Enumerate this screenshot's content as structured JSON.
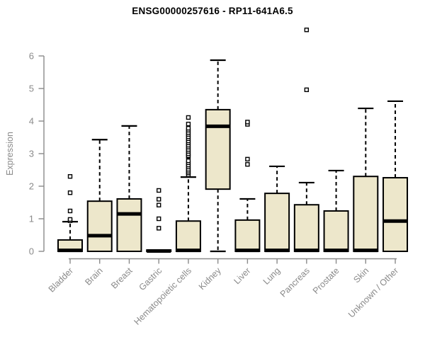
{
  "page": {
    "background": "#ffffff"
  },
  "chart_data": {
    "type": "box",
    "title": "ENSG00000257616 - RP11-641A6.5",
    "ylabel": "Expression",
    "xlabel": "",
    "ylim": [
      0,
      6
    ],
    "yticks": [
      0,
      1,
      2,
      3,
      4,
      5,
      6
    ],
    "grid": false,
    "legend": "none",
    "box_fill": "#ede7cb",
    "box_stroke": "#000000",
    "axis_color": "#8a8a8a",
    "categories": [
      "Bladder",
      "Brain",
      "Breast",
      "Gastric",
      "Hematopoietic cells",
      "Kidney",
      "Liver",
      "Lung",
      "Pancreas",
      "Prostate",
      "Skin",
      "Unknown / Other"
    ],
    "series": [
      {
        "label": "Bladder",
        "q1": 0,
        "median": 0.03,
        "q3": 0.35,
        "whisker_low": 0,
        "whisker_high": 0.91,
        "outliers": [
          0.94,
          0.98,
          1.24,
          1.8,
          2.3
        ]
      },
      {
        "label": "Brain",
        "q1": 0,
        "median": 0.48,
        "q3": 1.54,
        "whisker_low": 0,
        "whisker_high": 3.43,
        "outliers": []
      },
      {
        "label": "Breast",
        "q1": 0,
        "median": 1.15,
        "q3": 1.61,
        "whisker_low": 0,
        "whisker_high": 3.85,
        "outliers": []
      },
      {
        "label": "Gastric",
        "q1": 0,
        "median": 0.01,
        "q3": 0.04,
        "whisker_low": 0,
        "whisker_high": 0.04,
        "outliers": [
          0.71,
          1.0,
          1.42,
          1.6,
          1.87
        ]
      },
      {
        "label": "Hematopoietic cells",
        "q1": 0,
        "median": 0.03,
        "q3": 0.93,
        "whisker_low": 0,
        "whisker_high": 2.28,
        "outliers": [
          2.35,
          2.41,
          2.46,
          2.52,
          2.59,
          2.65,
          2.72,
          2.78,
          2.91,
          2.94,
          3.0,
          3.07,
          3.13,
          3.2,
          3.26,
          3.33,
          3.39,
          3.46,
          3.52,
          3.59,
          3.65,
          3.72,
          3.78,
          3.91,
          4.11
        ]
      },
      {
        "label": "Kidney",
        "q1": 1.91,
        "median": 3.84,
        "q3": 4.35,
        "whisker_low": 0,
        "whisker_high": 5.87,
        "outliers": []
      },
      {
        "label": "Liver",
        "q1": 0,
        "median": 0.03,
        "q3": 0.96,
        "whisker_low": 0,
        "whisker_high": 1.61,
        "outliers": [
          2.67,
          2.83,
          3.9,
          3.97
        ]
      },
      {
        "label": "Lung",
        "q1": 0,
        "median": 0.03,
        "q3": 1.78,
        "whisker_low": 0,
        "whisker_high": 2.61,
        "outliers": []
      },
      {
        "label": "Pancreas",
        "q1": 0,
        "median": 0.03,
        "q3": 1.43,
        "whisker_low": 0,
        "whisker_high": 2.11,
        "outliers": [
          4.96,
          6.8
        ]
      },
      {
        "label": "Prostate",
        "q1": 0,
        "median": 0.03,
        "q3": 1.24,
        "whisker_low": 0,
        "whisker_high": 2.48,
        "outliers": []
      },
      {
        "label": "Skin",
        "q1": 0,
        "median": 0.03,
        "q3": 2.3,
        "whisker_low": 0,
        "whisker_high": 4.39,
        "outliers": []
      },
      {
        "label": "Unknown / Other",
        "q1": 0,
        "median": 0.93,
        "q3": 2.26,
        "whisker_low": 0,
        "whisker_high": 4.61,
        "outliers": []
      }
    ]
  }
}
